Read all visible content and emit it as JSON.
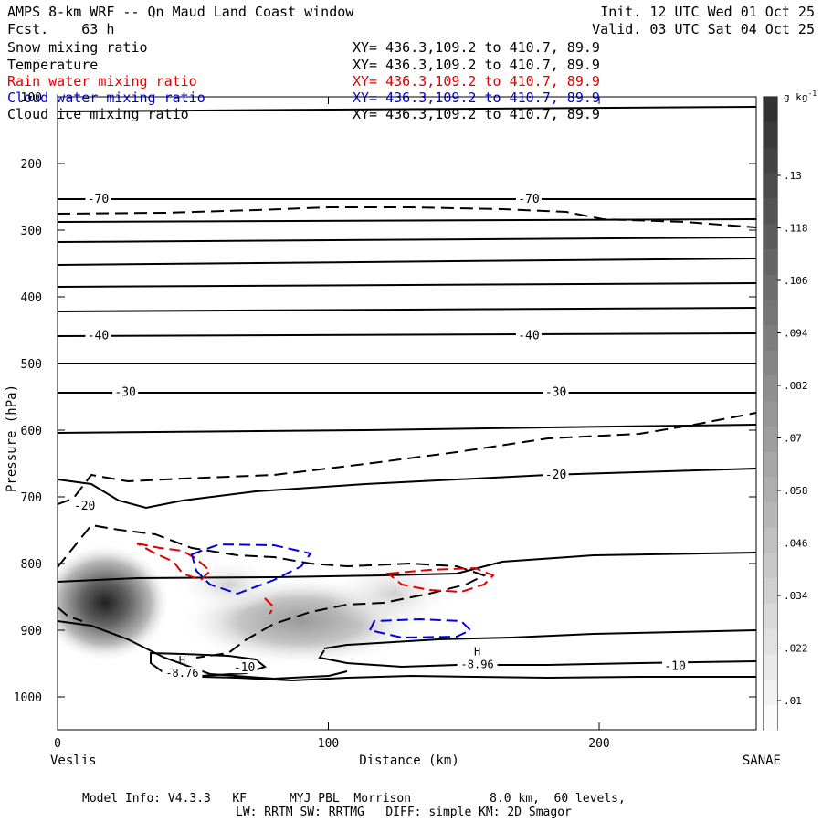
{
  "header": {
    "title": "AMPS 8-km WRF -- Qn Maud Land Coast window",
    "forecast": "Fcst.    63 h",
    "init": "Init. 12 UTC Wed 01 Oct 25",
    "valid": "Valid. 03 UTC Sat 04 Oct 25"
  },
  "fields": [
    {
      "name": "Snow mixing ratio",
      "xy": "XY= 436.3,109.2 to 410.7, 89.9",
      "color": "#000000"
    },
    {
      "name": "Temperature",
      "xy": "XY= 436.3,109.2 to 410.7, 89.9",
      "color": "#000000"
    },
    {
      "name": "Rain water mixing ratio",
      "xy": "XY= 436.3,109.2 to 410.7, 89.9",
      "color": "#e00000"
    },
    {
      "name": "Cloud water mixing ratio",
      "xy": "XY= 436.3,109.2 to 410.7, 89.9",
      "color": "#0000e0"
    },
    {
      "name": "Cloud ice mixing ratio",
      "xy": "XY= 436.3,109.2 to 410.7, 89.9",
      "color": "#000000"
    }
  ],
  "footer": {
    "line1": "Model Info: V4.3.3   KF      MYJ PBL  Morrison           8.0 km,  60 levels,",
    "line2": "LW: RRTM SW: RRTMG   DIFF: simple KM: 2D Smagor"
  },
  "chart_data": {
    "type": "contour-cross-section",
    "xlabel": "Distance (km)",
    "ylabel": "Pressure (hPa)",
    "x_start_label": "Veslis",
    "x_end_label": "SANAE",
    "xlim": [
      0,
      258
    ],
    "ylim": [
      1050,
      100
    ],
    "xticks": [
      0,
      100,
      200
    ],
    "yticks": [
      100,
      200,
      300,
      400,
      500,
      600,
      700,
      800,
      900,
      1000
    ],
    "colorbar": {
      "unit": "g kg",
      "unit_exp": "-1",
      "ticks": [
        ".01",
        ".022",
        ".034",
        ".046",
        ".058",
        ".07",
        ".082",
        ".094",
        ".106",
        ".118",
        ".13"
      ]
    },
    "temperature_labels": [
      {
        "x": 15,
        "p": 252,
        "text": "-70"
      },
      {
        "x": 174,
        "p": 252,
        "text": "-70"
      },
      {
        "x": 15,
        "p": 457,
        "text": "-40"
      },
      {
        "x": 174,
        "p": 457,
        "text": "-40"
      },
      {
        "x": 25,
        "p": 542,
        "text": "-30"
      },
      {
        "x": 184,
        "p": 542,
        "text": "-30"
      },
      {
        "x": 184,
        "p": 666,
        "text": "-20"
      },
      {
        "x": 10,
        "p": 712,
        "text": "-20"
      },
      {
        "x": 69,
        "p": 955,
        "text": "-10"
      },
      {
        "x": 228,
        "p": 953,
        "text": "-10"
      }
    ],
    "high_markers": [
      {
        "x": 46,
        "p": 955,
        "text": "H",
        "value": "-8.76"
      },
      {
        "x": 155,
        "p": 942,
        "text": "H",
        "value": "-8.96"
      }
    ]
  }
}
